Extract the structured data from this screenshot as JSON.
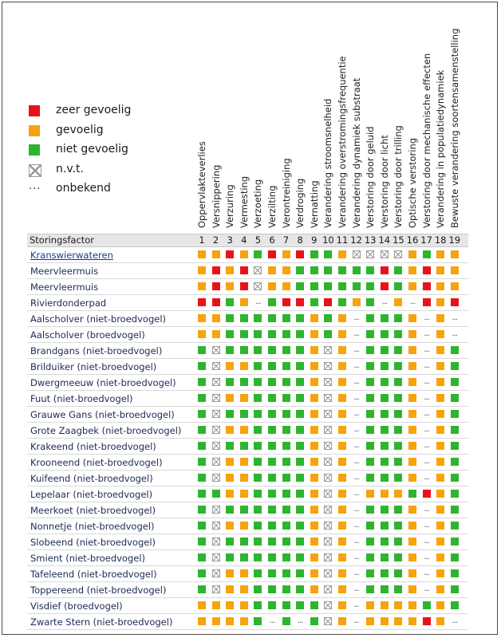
{
  "colors": {
    "red": "#e8131a",
    "orange": "#f5a40d",
    "green": "#2db52d",
    "nvt_border": "#9a9a9a"
  },
  "legend": [
    {
      "key": "R",
      "swatch": "red",
      "label": "zeer gevoelig"
    },
    {
      "key": "O",
      "swatch": "orange",
      "label": "gevoelig"
    },
    {
      "key": "G",
      "swatch": "green",
      "label": "niet gevoelig"
    },
    {
      "key": "X",
      "swatch": "nvt",
      "label": "n.v.t."
    },
    {
      "key": ".",
      "swatch": "dots",
      "symbol": "...",
      "label": "onbekend"
    }
  ],
  "chart_data": {
    "type": "table",
    "header_label": "Storingsfactor",
    "column_numbers": [
      "1",
      "2",
      "3",
      "4",
      "5",
      "6",
      "7",
      "8",
      "9",
      "10",
      "11",
      "12",
      "13",
      "14",
      "15",
      "16",
      "17",
      "18",
      "19"
    ],
    "columns": [
      "Oppervlakteverlies",
      "Versnippering",
      "Verzuring",
      "Vermesting",
      "Verzoeting",
      "Verzilting",
      "Verontreiniging",
      "Verdroging",
      "Vernatting",
      "Verandering stroomsnelheid",
      "Verandering overstromingsfrequentie",
      "Verandering dynamiek substraat",
      "Verstoring door geluid",
      "Verstoring door licht",
      "Verstoring door trilling",
      "Optische verstoring",
      "Verstoring door mechanische effecten",
      "Verandering in populatiedynamiek",
      "Bewuste verandering soortensamenstelling"
    ],
    "rows": [
      {
        "label": "Kranswierwateren",
        "link": true,
        "values": [
          "O",
          "O",
          "R",
          "O",
          "G",
          "R",
          "O",
          "R",
          "G",
          "G",
          "O",
          "X",
          "X",
          "X",
          "X",
          "O",
          "G",
          "O",
          "O"
        ]
      },
      {
        "label": "Meervleermuis",
        "link": false,
        "values": [
          "O",
          "R",
          "O",
          "R",
          "X",
          "O",
          "O",
          "G",
          "G",
          "G",
          "G",
          "G",
          "G",
          "R",
          "G",
          "O",
          "R",
          "O",
          "O"
        ]
      },
      {
        "label": "Meervleermuis",
        "link": false,
        "values": [
          "O",
          "R",
          "O",
          "R",
          "X",
          "O",
          "O",
          "G",
          "G",
          "G",
          "G",
          "G",
          "G",
          "R",
          "G",
          "O",
          "R",
          "O",
          "O"
        ]
      },
      {
        "label": "Rivierdonderpad",
        "link": false,
        "values": [
          "R",
          "R",
          "G",
          "O",
          ".",
          "G",
          "R",
          "R",
          "G",
          "R",
          "G",
          "O",
          "G",
          ".",
          "O",
          ".",
          "R",
          "O",
          "R"
        ]
      },
      {
        "label": "Aalscholver (niet-broedvogel)",
        "link": false,
        "values": [
          "O",
          "O",
          "G",
          "G",
          "G",
          "G",
          "G",
          "G",
          "O",
          "G",
          "O",
          ".",
          "G",
          "G",
          "G",
          "O",
          ".",
          "O",
          "."
        ]
      },
      {
        "label": "Aalscholver (broedvogel)",
        "link": false,
        "values": [
          "O",
          "O",
          "G",
          "G",
          "G",
          "G",
          "G",
          "G",
          "O",
          "G",
          "O",
          ".",
          "G",
          "G",
          "G",
          "O",
          ".",
          "O",
          "."
        ]
      },
      {
        "label": "Brandgans (niet-broedvogel)",
        "link": false,
        "values": [
          "G",
          "X",
          "G",
          "G",
          "G",
          "G",
          "G",
          "G",
          "O",
          "X",
          "O",
          ".",
          "G",
          "G",
          "G",
          "O",
          ".",
          "O",
          "G"
        ]
      },
      {
        "label": "Brilduiker (niet-broedvogel)",
        "link": false,
        "values": [
          "G",
          "X",
          "O",
          "O",
          "G",
          "G",
          "G",
          "G",
          "O",
          "X",
          "O",
          ".",
          "G",
          "G",
          "G",
          "O",
          ".",
          "O",
          "G"
        ]
      },
      {
        "label": "Dwergmeeuw (niet-broedvogel)",
        "link": false,
        "values": [
          "G",
          "X",
          "G",
          "G",
          "G",
          "G",
          "G",
          "G",
          "O",
          "X",
          "O",
          ".",
          "G",
          "G",
          "G",
          "O",
          ".",
          "O",
          "G"
        ]
      },
      {
        "label": "Fuut (niet-broedvogel)",
        "link": false,
        "values": [
          "G",
          "X",
          "O",
          "O",
          "G",
          "G",
          "G",
          "G",
          "O",
          "X",
          "O",
          ".",
          "G",
          "G",
          "G",
          "O",
          ".",
          "O",
          "G"
        ]
      },
      {
        "label": "Grauwe Gans (niet-broedvogel)",
        "link": false,
        "values": [
          "G",
          "X",
          "G",
          "G",
          "G",
          "G",
          "G",
          "G",
          "O",
          "X",
          "O",
          ".",
          "G",
          "G",
          "G",
          "O",
          ".",
          "O",
          "G"
        ]
      },
      {
        "label": "Grote Zaagbek (niet-broedvogel)",
        "link": false,
        "values": [
          "G",
          "X",
          "O",
          "O",
          "G",
          "G",
          "G",
          "G",
          "O",
          "X",
          "O",
          ".",
          "G",
          "G",
          "G",
          "O",
          ".",
          "O",
          "G"
        ]
      },
      {
        "label": "Krakeend (niet-broedvogel)",
        "link": false,
        "values": [
          "G",
          "X",
          "G",
          "G",
          "G",
          "G",
          "G",
          "G",
          "O",
          "X",
          "O",
          ".",
          "G",
          "G",
          "G",
          "O",
          ".",
          "O",
          "G"
        ]
      },
      {
        "label": "Krooneend (niet-broedvogel)",
        "link": false,
        "values": [
          "G",
          "X",
          "O",
          "O",
          "G",
          "G",
          "G",
          "G",
          "O",
          "X",
          "O",
          ".",
          "G",
          "G",
          "G",
          "O",
          ".",
          "O",
          "G"
        ]
      },
      {
        "label": "Kuifeend (niet-broedvogel)",
        "link": false,
        "values": [
          "G",
          "X",
          "O",
          "O",
          "G",
          "G",
          "G",
          "G",
          "O",
          "X",
          "O",
          ".",
          "G",
          "G",
          "G",
          "O",
          ".",
          "O",
          "G"
        ]
      },
      {
        "label": "Lepelaar (niet-broedvogel)",
        "link": false,
        "values": [
          "G",
          "G",
          "O",
          "O",
          "G",
          "G",
          "G",
          "G",
          "O",
          "X",
          "O",
          ".",
          "O",
          "O",
          "O",
          "G",
          "R",
          "O",
          "G"
        ]
      },
      {
        "label": "Meerkoet (niet-broedvogel)",
        "link": false,
        "values": [
          "G",
          "X",
          "G",
          "G",
          "G",
          "G",
          "G",
          "G",
          "O",
          "X",
          "O",
          ".",
          "G",
          "G",
          "G",
          "O",
          ".",
          "O",
          "G"
        ]
      },
      {
        "label": "Nonnetje (niet-broedvogel)",
        "link": false,
        "values": [
          "G",
          "X",
          "O",
          "O",
          "G",
          "G",
          "G",
          "G",
          "O",
          "X",
          "O",
          ".",
          "G",
          "G",
          "G",
          "O",
          ".",
          "O",
          "G"
        ]
      },
      {
        "label": "Slobeend (niet-broedvogel)",
        "link": false,
        "values": [
          "G",
          "X",
          "G",
          "G",
          "G",
          "G",
          "G",
          "G",
          "O",
          "X",
          "O",
          ".",
          "G",
          "G",
          "G",
          "O",
          ".",
          "O",
          "G"
        ]
      },
      {
        "label": "Smient (niet-broedvogel)",
        "link": false,
        "values": [
          "G",
          "X",
          "G",
          "G",
          "G",
          "G",
          "G",
          "G",
          "O",
          "X",
          "O",
          ".",
          "G",
          "G",
          "G",
          "O",
          ".",
          "O",
          "G"
        ]
      },
      {
        "label": "Tafeleend (niet-broedvogel)",
        "link": false,
        "values": [
          "G",
          "X",
          "O",
          "O",
          "G",
          "G",
          "G",
          "G",
          "O",
          "X",
          "O",
          ".",
          "G",
          "G",
          "G",
          "O",
          ".",
          "O",
          "G"
        ]
      },
      {
        "label": "Toppereend (niet-broedvogel)",
        "link": false,
        "values": [
          "G",
          "X",
          "O",
          "O",
          "G",
          "G",
          "G",
          "G",
          "O",
          "X",
          "O",
          ".",
          "G",
          "G",
          "G",
          "O",
          ".",
          "O",
          "G"
        ]
      },
      {
        "label": "Visdief (broedvogel)",
        "link": false,
        "values": [
          "O",
          "O",
          "O",
          "O",
          "G",
          "G",
          "G",
          "G",
          "G",
          "X",
          "O",
          ".",
          "O",
          "O",
          "O",
          "O",
          "G",
          "O",
          "G"
        ]
      },
      {
        "label": "Zwarte Stern (niet-broedvogel)",
        "link": false,
        "values": [
          "O",
          "O",
          "O",
          "O",
          "G",
          ".",
          "G",
          ".",
          "G",
          "X",
          "O",
          ".",
          "O",
          "O",
          "O",
          "O",
          "R",
          "O",
          "."
        ]
      }
    ]
  }
}
